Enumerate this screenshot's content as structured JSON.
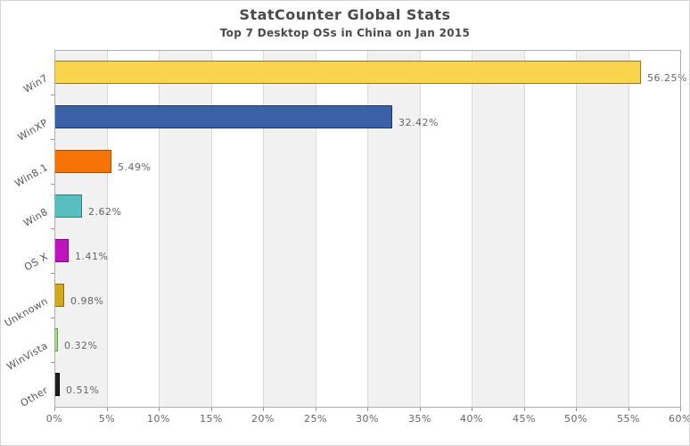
{
  "header": {
    "title": "StatCounter Global Stats",
    "subtitle": "Top 7 Desktop OSs in China on Jan 2015"
  },
  "chart_data": {
    "type": "bar",
    "orientation": "horizontal",
    "title": "StatCounter Global Stats",
    "subtitle": "Top 7 Desktop OSs in China on Jan 2015",
    "categories": [
      "Win7",
      "WinXP",
      "Win8.1",
      "Win8",
      "OS X",
      "Unknown",
      "WinVista",
      "Other"
    ],
    "values": [
      56.25,
      32.42,
      5.49,
      2.62,
      1.41,
      0.98,
      0.32,
      0.51
    ],
    "value_labels": [
      "56.25%",
      "32.42%",
      "5.49%",
      "2.62%",
      "1.41%",
      "0.98%",
      "0.32%",
      "0.51%"
    ],
    "bar_colors": [
      "#fad44c",
      "#3a61a7",
      "#f57307",
      "#58bec0",
      "#c013c0",
      "#d2a81e",
      "#a9d79a",
      "#1f1f1f"
    ],
    "bar_border_colors": [
      "#8f7a26",
      "#20386b",
      "#a34e05",
      "#327f82",
      "#7c0b7c",
      "#8a6e12",
      "#639a52",
      "#000000"
    ],
    "xlabel": "",
    "ylabel": "",
    "xlim": [
      0,
      60
    ],
    "x_tick_step": 5,
    "x_tick_labels": [
      "0%",
      "5%",
      "10%",
      "15%",
      "20%",
      "25%",
      "30%",
      "35%",
      "40%",
      "45%",
      "50%",
      "55%",
      "60%"
    ],
    "grid": "vertical",
    "legend": "none",
    "colors": {
      "band_shaded": "#f1f1f1",
      "band_plain": "#ffffff",
      "gridline": "#dadada",
      "plot_border": "#aeaeae",
      "tick": "#999999",
      "title_text": "#4a4a4a",
      "axis_text": "#666666",
      "category_text": "#555555"
    }
  }
}
